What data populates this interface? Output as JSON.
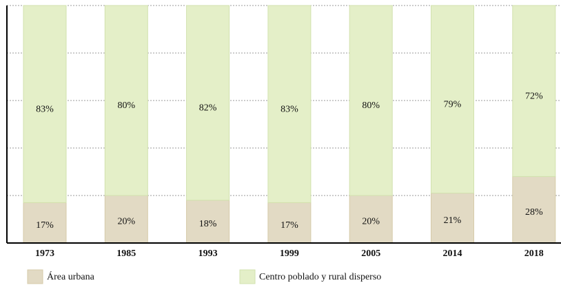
{
  "chart_data": {
    "type": "stacked_bar",
    "categories": [
      "1973",
      "1985",
      "1993",
      "1999",
      "2005",
      "2014",
      "2018"
    ],
    "series": [
      {
        "name": "Área urbana",
        "color": "#e2dac4",
        "stroke": "#d6cba9",
        "values": [
          17,
          20,
          18,
          17,
          20,
          21,
          28
        ],
        "value_labels": [
          "17%",
          "20%",
          "18%",
          "17%",
          "20%",
          "21%",
          "28%"
        ]
      },
      {
        "name": "Centro poblado y rural disperso",
        "color": "#e4efc8",
        "stroke": "#d2e2ae",
        "values": [
          83,
          80,
          82,
          83,
          80,
          79,
          72
        ],
        "value_labels": [
          "83%",
          "80%",
          "82%",
          "83%",
          "80%",
          "79%",
          "72%"
        ]
      }
    ],
    "ylim": [
      0,
      100
    ],
    "yticks": [
      0,
      20,
      40,
      60,
      80,
      100
    ],
    "grid": true
  }
}
